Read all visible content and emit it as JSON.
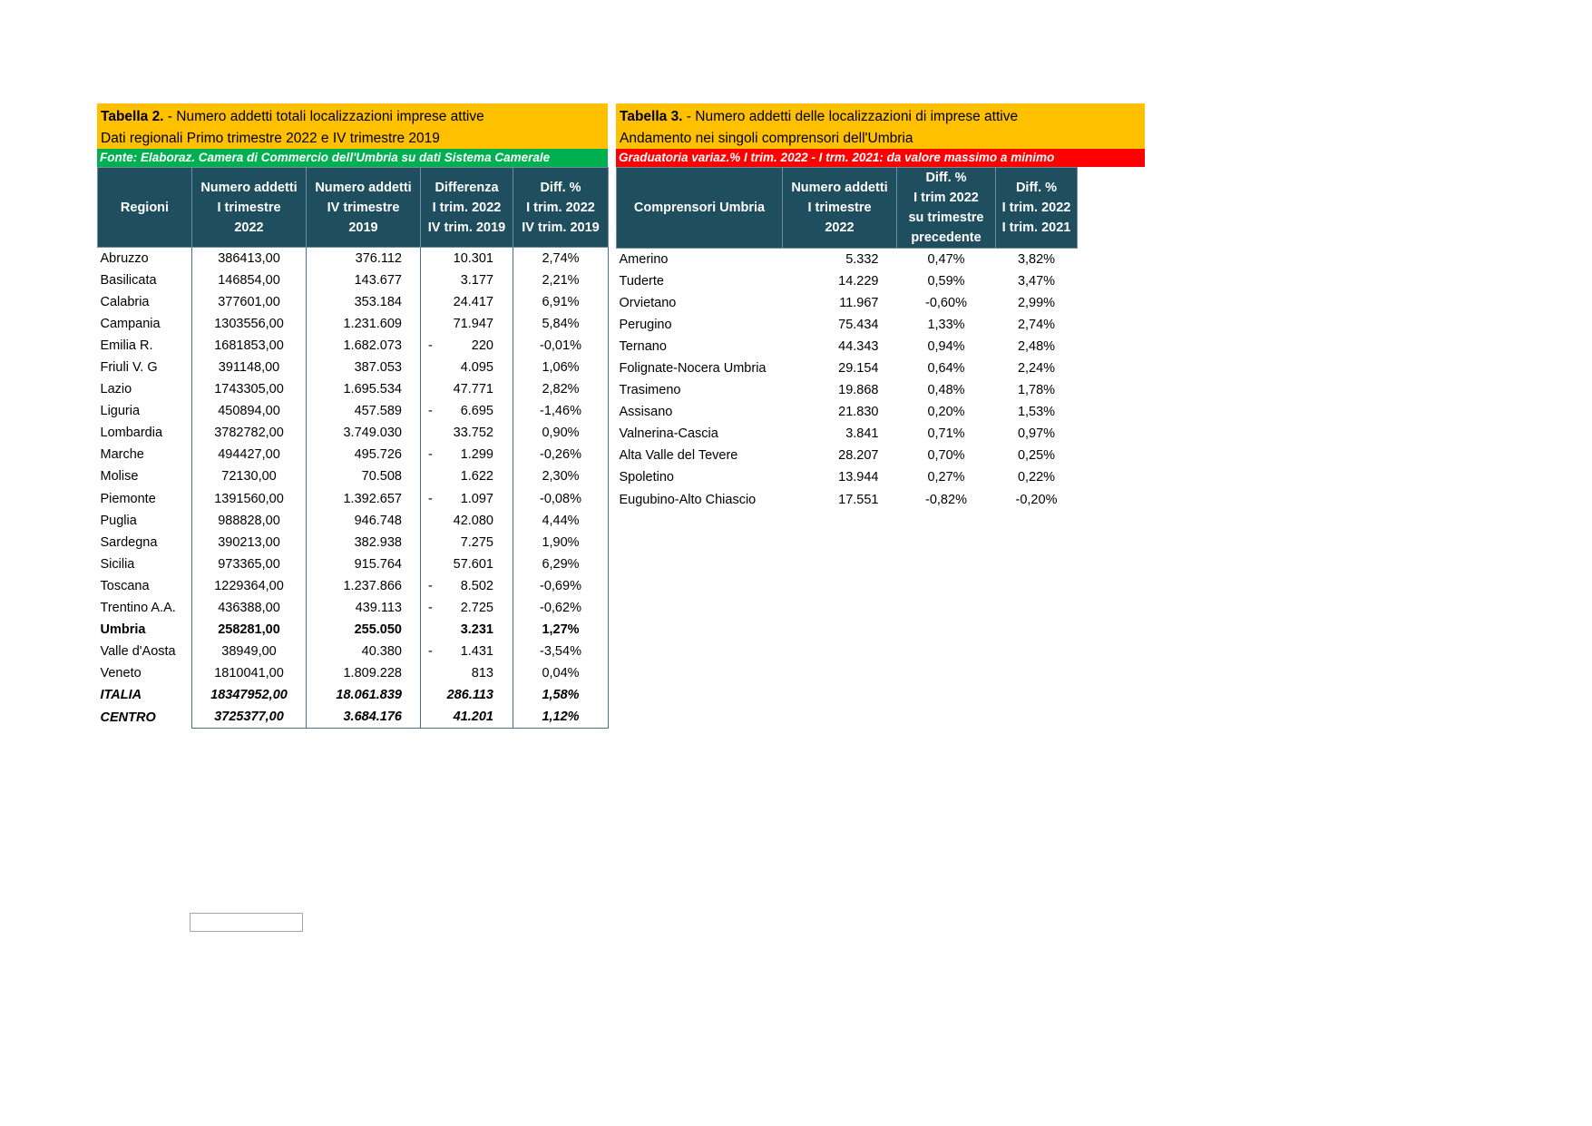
{
  "table2": {
    "title_bold": "Tabella 2.",
    "title_rest": " - Numero addetti totali localizzazioni imprese attive",
    "subtitle": "Dati regionali Primo trimestre 2022 e IV trimestre 2019",
    "source": "Fonte: Elaboraz. Camera di Commercio dell'Umbria su dati Sistema Camerale",
    "source_color": "#00B050",
    "headers": [
      [
        "Regioni"
      ],
      [
        "Numero addetti",
        "I trimestre",
        "2022"
      ],
      [
        "Numero addetti",
        "IV trimestre",
        "2019"
      ],
      [
        "Differenza",
        "I trim. 2022",
        "IV trim. 2019"
      ],
      [
        "Diff. %",
        "I trim. 2022",
        "IV trim. 2019"
      ]
    ],
    "rows": [
      {
        "region": "Abruzzo",
        "a2022": "386413,00",
        "a2019": "376.112",
        "sign": "",
        "diff": "10.301",
        "pct": "2,74%"
      },
      {
        "region": "Basilicata",
        "a2022": "146854,00",
        "a2019": "143.677",
        "sign": "",
        "diff": "3.177",
        "pct": "2,21%"
      },
      {
        "region": "Calabria",
        "a2022": "377601,00",
        "a2019": "353.184",
        "sign": "",
        "diff": "24.417",
        "pct": "6,91%"
      },
      {
        "region": "Campania",
        "a2022": "1303556,00",
        "a2019": "1.231.609",
        "sign": "",
        "diff": "71.947",
        "pct": "5,84%"
      },
      {
        "region": "Emilia R.",
        "a2022": "1681853,00",
        "a2019": "1.682.073",
        "sign": "-",
        "diff": "220",
        "pct": "-0,01%"
      },
      {
        "region": "Friuli V. G",
        "a2022": "391148,00",
        "a2019": "387.053",
        "sign": "",
        "diff": "4.095",
        "pct": "1,06%"
      },
      {
        "region": "Lazio",
        "a2022": "1743305,00",
        "a2019": "1.695.534",
        "sign": "",
        "diff": "47.771",
        "pct": "2,82%"
      },
      {
        "region": "Liguria",
        "a2022": "450894,00",
        "a2019": "457.589",
        "sign": "-",
        "diff": "6.695",
        "pct": "-1,46%"
      },
      {
        "region": "Lombardia",
        "a2022": "3782782,00",
        "a2019": "3.749.030",
        "sign": "",
        "diff": "33.752",
        "pct": "0,90%"
      },
      {
        "region": "Marche",
        "a2022": "494427,00",
        "a2019": "495.726",
        "sign": "-",
        "diff": "1.299",
        "pct": "-0,26%"
      },
      {
        "region": "Molise",
        "a2022": "72130,00",
        "a2019": "70.508",
        "sign": "",
        "diff": "1.622",
        "pct": "2,30%"
      },
      {
        "region": "Piemonte",
        "a2022": "1391560,00",
        "a2019": "1.392.657",
        "sign": "-",
        "diff": "1.097",
        "pct": "-0,08%"
      },
      {
        "region": "Puglia",
        "a2022": "988828,00",
        "a2019": "946.748",
        "sign": "",
        "diff": "42.080",
        "pct": "4,44%"
      },
      {
        "region": "Sardegna",
        "a2022": "390213,00",
        "a2019": "382.938",
        "sign": "",
        "diff": "7.275",
        "pct": "1,90%"
      },
      {
        "region": "Sicilia",
        "a2022": "973365,00",
        "a2019": "915.764",
        "sign": "",
        "diff": "57.601",
        "pct": "6,29%"
      },
      {
        "region": "Toscana",
        "a2022": "1229364,00",
        "a2019": "1.237.866",
        "sign": "-",
        "diff": "8.502",
        "pct": "-0,69%"
      },
      {
        "region": "Trentino A.A.",
        "a2022": "436388,00",
        "a2019": "439.113",
        "sign": "-",
        "diff": "2.725",
        "pct": "-0,62%"
      },
      {
        "region": "Umbria",
        "a2022": "258281,00",
        "a2019": "255.050",
        "sign": "",
        "diff": "3.231",
        "pct": "1,27%",
        "style": "bold"
      },
      {
        "region": "Valle d'Aosta",
        "a2022": "38949,00",
        "a2019": "40.380",
        "sign": "-",
        "diff": "1.431",
        "pct": "-3,54%"
      },
      {
        "region": "Veneto",
        "a2022": "1810041,00",
        "a2019": "1.809.228",
        "sign": "",
        "diff": "813",
        "pct": "0,04%"
      },
      {
        "region": "ITALIA",
        "a2022": "18347952,00",
        "a2019": "18.061.839",
        "sign": "",
        "diff": "286.113",
        "pct": "1,58%",
        "style": "bi"
      },
      {
        "region": "CENTRO",
        "a2022": "3725377,00",
        "a2019": "3.684.176",
        "sign": "",
        "diff": "41.201",
        "pct": "1,12%",
        "style": "bi"
      }
    ]
  },
  "table3": {
    "title_bold": "Tabella 3.",
    "title_rest": " - Numero addetti delle localizzazioni di imprese attive",
    "subtitle": "Andamento nei singoli comprensori dell'Umbria",
    "source": "Graduatoria variaz.% I trim. 2022 - I trm. 2021: da valore massimo a minimo",
    "source_color": "#FF0000",
    "headers": [
      [
        "Comprensori Umbria"
      ],
      [
        "Numero addetti",
        "I trimestre",
        "2022"
      ],
      [
        "Diff. %",
        "I trim 2022",
        "su trimestre",
        "precedente"
      ],
      [
        "Diff. %",
        "I trim. 2022",
        "I trim. 2021"
      ]
    ],
    "rows": [
      {
        "name": "Amerino",
        "addetti": "5.332",
        "qoq": "0,47%",
        "yoy": "3,82%"
      },
      {
        "name": "Tuderte",
        "addetti": "14.229",
        "qoq": "0,59%",
        "yoy": "3,47%"
      },
      {
        "name": "Orvietano",
        "addetti": "11.967",
        "qoq": "-0,60%",
        "yoy": "2,99%"
      },
      {
        "name": "Perugino",
        "addetti": "75.434",
        "qoq": "1,33%",
        "yoy": "2,74%"
      },
      {
        "name": "Ternano",
        "addetti": "44.343",
        "qoq": "0,94%",
        "yoy": "2,48%"
      },
      {
        "name": "Folignate-Nocera Umbria",
        "addetti": "29.154",
        "qoq": "0,64%",
        "yoy": "2,24%"
      },
      {
        "name": "Trasimeno",
        "addetti": "19.868",
        "qoq": "0,48%",
        "yoy": "1,78%"
      },
      {
        "name": "Assisano",
        "addetti": "21.830",
        "qoq": "0,20%",
        "yoy": "1,53%"
      },
      {
        "name": "Valnerina-Cascia",
        "addetti": "3.841",
        "qoq": "0,71%",
        "yoy": "0,97%"
      },
      {
        "name": "Alta Valle del Tevere",
        "addetti": "28.207",
        "qoq": "0,70%",
        "yoy": "0,25%"
      },
      {
        "name": "Spoletino",
        "addetti": "13.944",
        "qoq": "0,27%",
        "yoy": "0,22%"
      },
      {
        "name": "Eugubino-Alto Chiascio",
        "addetti": "17.551",
        "qoq": "-0,82%",
        "yoy": "-0,20%"
      }
    ]
  }
}
